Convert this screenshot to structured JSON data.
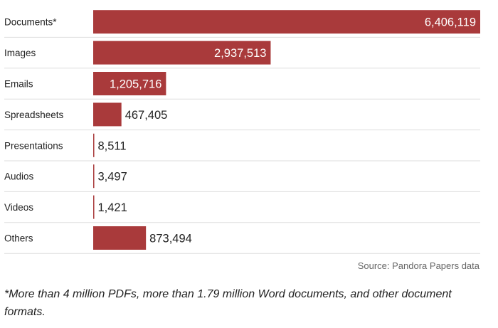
{
  "chart_data": {
    "type": "bar",
    "orientation": "horizontal",
    "categories": [
      "Documents*",
      "Images",
      "Emails",
      "Spreadsheets",
      "Presentations",
      "Audios",
      "Videos",
      "Others"
    ],
    "values": [
      6406119,
      2937513,
      1205716,
      467405,
      8511,
      3497,
      1421,
      873494
    ],
    "value_labels": [
      "6,406,119",
      "2,937,513",
      "1,205,716",
      "467,405",
      "8,511",
      "3,497",
      "1,421",
      "873,494"
    ],
    "xlim": [
      0,
      6406119
    ],
    "grid": false,
    "row_dividers": true,
    "bar_color": "#a93a3b",
    "divider_color": "#dddddd"
  },
  "source": "Source: Pandora Papers data",
  "footnote": "*More than 4 million PDFs, more than 1.79 million Word documents, and other document formats."
}
